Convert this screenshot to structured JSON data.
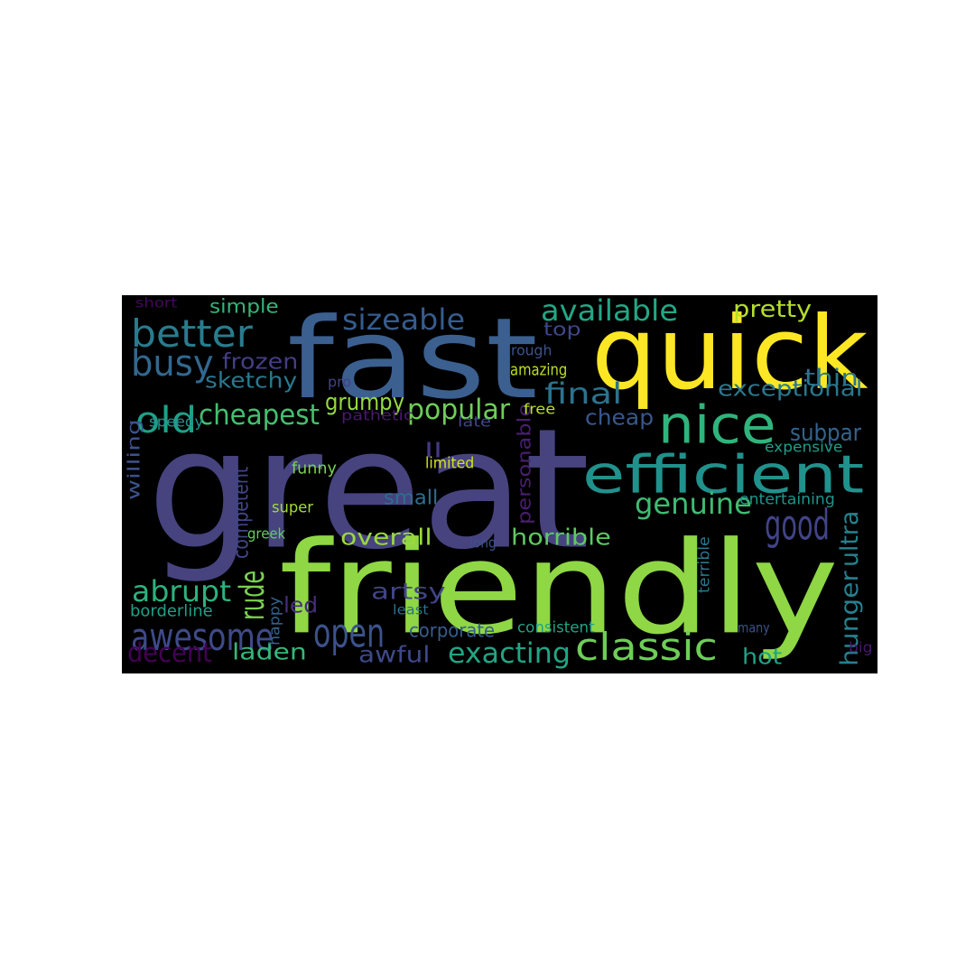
{
  "wordcloud": {
    "background": "#000000",
    "words": [
      {
        "text": "great",
        "color": "#46437f"
      },
      {
        "text": "friendly",
        "color": "#8fd744"
      },
      {
        "text": "fast",
        "color": "#3b5f8f"
      },
      {
        "text": "quick",
        "color": "#fde725"
      },
      {
        "text": "efficient",
        "color": "#21918c"
      },
      {
        "text": "nice",
        "color": "#2fb47c"
      },
      {
        "text": "classic",
        "color": "#6ece58"
      },
      {
        "text": "good",
        "color": "#414487"
      },
      {
        "text": "open",
        "color": "#3b528b"
      },
      {
        "text": "awesome",
        "color": "#3e4a89"
      },
      {
        "text": "better",
        "color": "#287c8e"
      },
      {
        "text": "busy",
        "color": "#31688e"
      },
      {
        "text": "old",
        "color": "#1fa088"
      },
      {
        "text": "sizeable",
        "color": "#365c8d"
      },
      {
        "text": "available",
        "color": "#22a785"
      },
      {
        "text": "popular",
        "color": "#6ece58"
      },
      {
        "text": "cheapest",
        "color": "#44bf70"
      },
      {
        "text": "genuine",
        "color": "#3fbc73"
      },
      {
        "text": "exacting",
        "color": "#21a585"
      },
      {
        "text": "abrupt",
        "color": "#2db27d"
      },
      {
        "text": "decent",
        "color": "#440154"
      },
      {
        "text": "rude",
        "color": "#7ad151"
      },
      {
        "text": "final",
        "color": "#2c728e"
      },
      {
        "text": "pretty",
        "color": "#b5de2b"
      },
      {
        "text": "exceptional",
        "color": "#29788e"
      },
      {
        "text": "grumpy",
        "color": "#95d840"
      },
      {
        "text": "frozen",
        "color": "#433e85"
      },
      {
        "text": "sketchy",
        "color": "#2a788e"
      },
      {
        "text": "cheap",
        "color": "#38588c"
      },
      {
        "text": "subpar",
        "color": "#33638d"
      },
      {
        "text": "thin",
        "color": "#2a768e"
      },
      {
        "text": "overall",
        "color": "#9bd93c"
      },
      {
        "text": "horrible",
        "color": "#5ec962"
      },
      {
        "text": "artsy",
        "color": "#414487"
      },
      {
        "text": "laden",
        "color": "#35b779"
      },
      {
        "text": "awful",
        "color": "#3e4989"
      },
      {
        "text": "hot",
        "color": "#20a386"
      },
      {
        "text": "led",
        "color": "#472d7b"
      },
      {
        "text": "ultra",
        "color": "#26828e"
      },
      {
        "text": "hunger",
        "color": "#277f8e"
      },
      {
        "text": "competent",
        "color": "#404688"
      },
      {
        "text": "small",
        "color": "#2e6e8e"
      },
      {
        "text": "willing",
        "color": "#3b528b"
      },
      {
        "text": "personable",
        "color": "#481f70"
      },
      {
        "text": "simple",
        "color": "#34b679"
      },
      {
        "text": "top",
        "color": "#3f4889"
      },
      {
        "text": "corporate",
        "color": "#365d8d"
      },
      {
        "text": "ll",
        "color": "#443983"
      },
      {
        "text": "short",
        "color": "#46085c"
      },
      {
        "text": "rough",
        "color": "#3b528b"
      },
      {
        "text": "pro",
        "color": "#424186"
      },
      {
        "text": "amazing",
        "color": "#bddf26"
      },
      {
        "text": "speedy",
        "color": "#21918c"
      },
      {
        "text": "pathetic",
        "color": "#481a6c"
      },
      {
        "text": "late",
        "color": "#404688"
      },
      {
        "text": "free",
        "color": "#b8de29"
      },
      {
        "text": "funny",
        "color": "#7ad151"
      },
      {
        "text": "limited",
        "color": "#d2e21b"
      },
      {
        "text": "super",
        "color": "#a2da37"
      },
      {
        "text": "greek",
        "color": "#65cb5e"
      },
      {
        "text": "long",
        "color": "#3b528b"
      },
      {
        "text": "expensive",
        "color": "#1f9e89"
      },
      {
        "text": "entertaining",
        "color": "#1f948c"
      },
      {
        "text": "terrible",
        "color": "#2a788e"
      },
      {
        "text": "borderline",
        "color": "#1fa188"
      },
      {
        "text": "happy",
        "color": "#33638d"
      },
      {
        "text": "least",
        "color": "#2d708e"
      },
      {
        "text": "consistent",
        "color": "#20a486"
      },
      {
        "text": "many",
        "color": "#3b528b"
      },
      {
        "text": "big",
        "color": "#48186a"
      }
    ]
  }
}
